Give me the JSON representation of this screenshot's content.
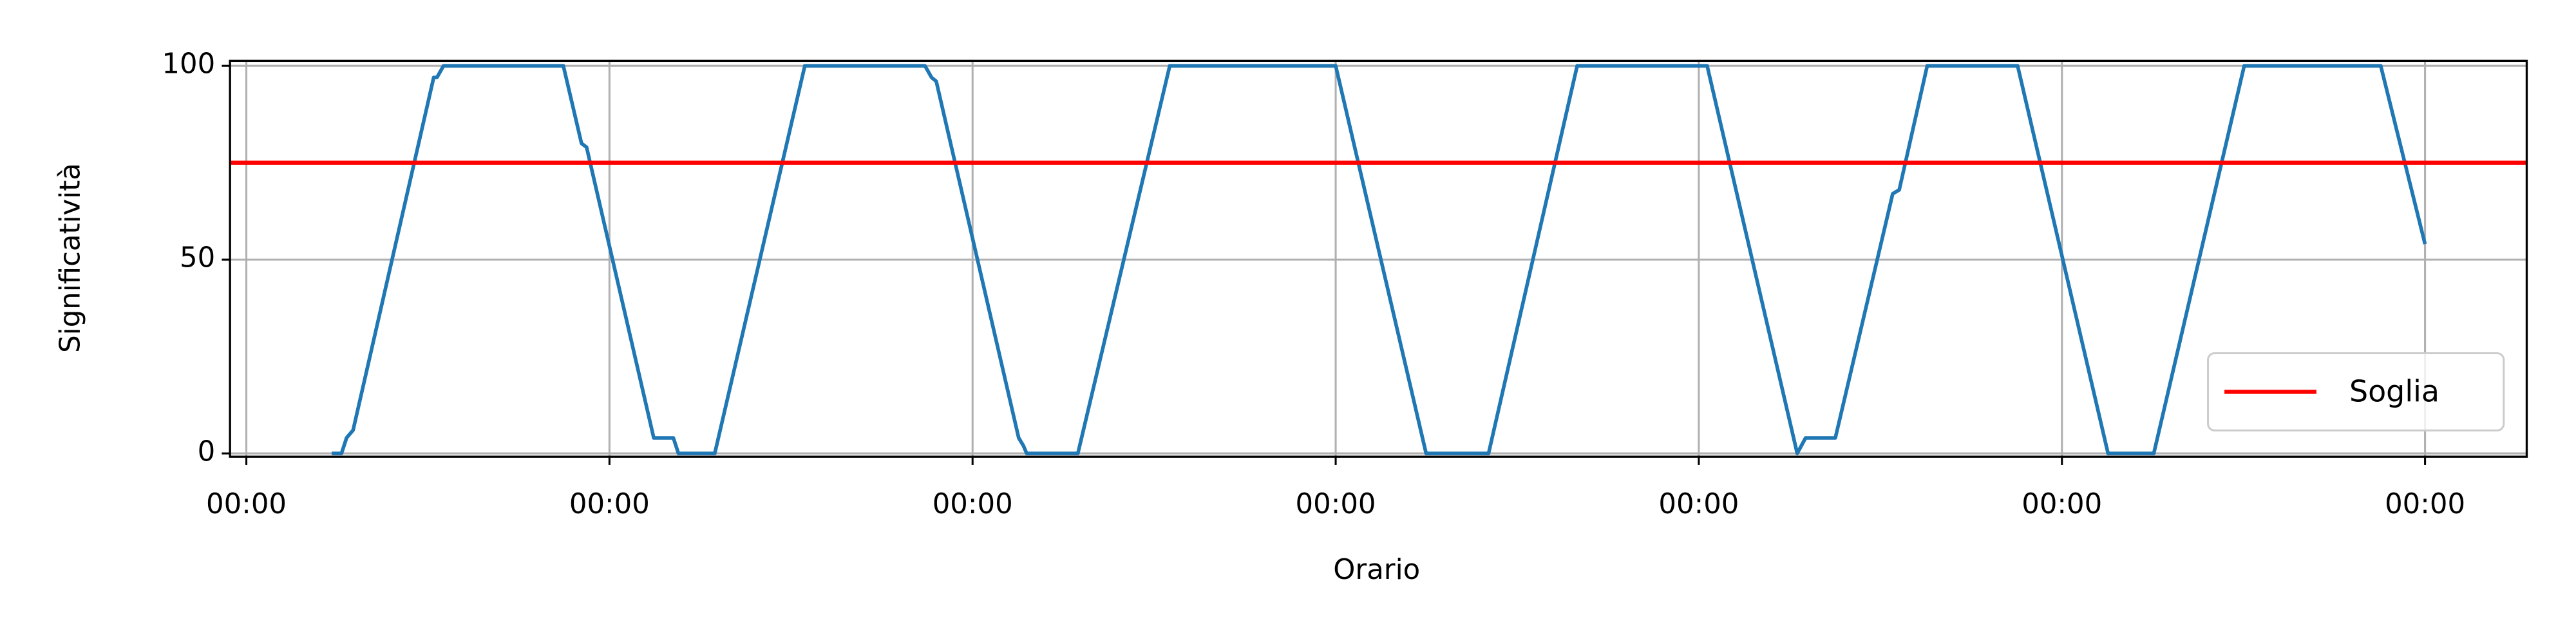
{
  "chart_data": {
    "type": "line",
    "x_label": "Orario",
    "y_label": "Significatività",
    "x": [
      0.235,
      0.262,
      0.276,
      0.294,
      0.516,
      0.525,
      0.543,
      0.873,
      0.923,
      0.937,
      1.122,
      1.176,
      1.19,
      1.29,
      1.538,
      1.869,
      1.887,
      1.9,
      2.127,
      2.14,
      2.149,
      2.29,
      2.543,
      3.0,
      3.249,
      3.421,
      3.665,
      4.023,
      4.271,
      4.294,
      4.376,
      4.534,
      4.552,
      4.629,
      4.878,
      5.127,
      5.253,
      5.502,
      5.878,
      6.0
    ],
    "series": [
      {
        "color": "#1f77b4",
        "values": [
          0,
          0,
          4,
          6,
          97,
          97,
          100,
          100,
          80,
          79,
          4,
          4,
          0,
          0,
          100,
          100,
          97,
          96,
          4,
          2,
          0,
          0,
          100,
          100,
          0,
          0,
          100,
          100,
          0,
          4,
          4,
          67,
          68,
          100,
          100,
          0,
          0,
          100,
          100,
          54
        ]
      }
    ],
    "threshold": {
      "name": "Soglia",
      "value": 75,
      "color": "#ff0000"
    },
    "xlim": [
      -0.045,
      6.28
    ],
    "ylim": [
      -0.85,
      101.3
    ],
    "xticks": [
      {
        "value": 0,
        "label": "00:00"
      },
      {
        "value": 1,
        "label": "00:00"
      },
      {
        "value": 2,
        "label": "00:00"
      },
      {
        "value": 3,
        "label": "00:00"
      },
      {
        "value": 4,
        "label": "00:00"
      },
      {
        "value": 5,
        "label": "00:00"
      },
      {
        "value": 6,
        "label": "00:00"
      }
    ],
    "yticks": [
      0,
      50,
      100
    ],
    "grid": true,
    "legend_position": "lower right"
  }
}
